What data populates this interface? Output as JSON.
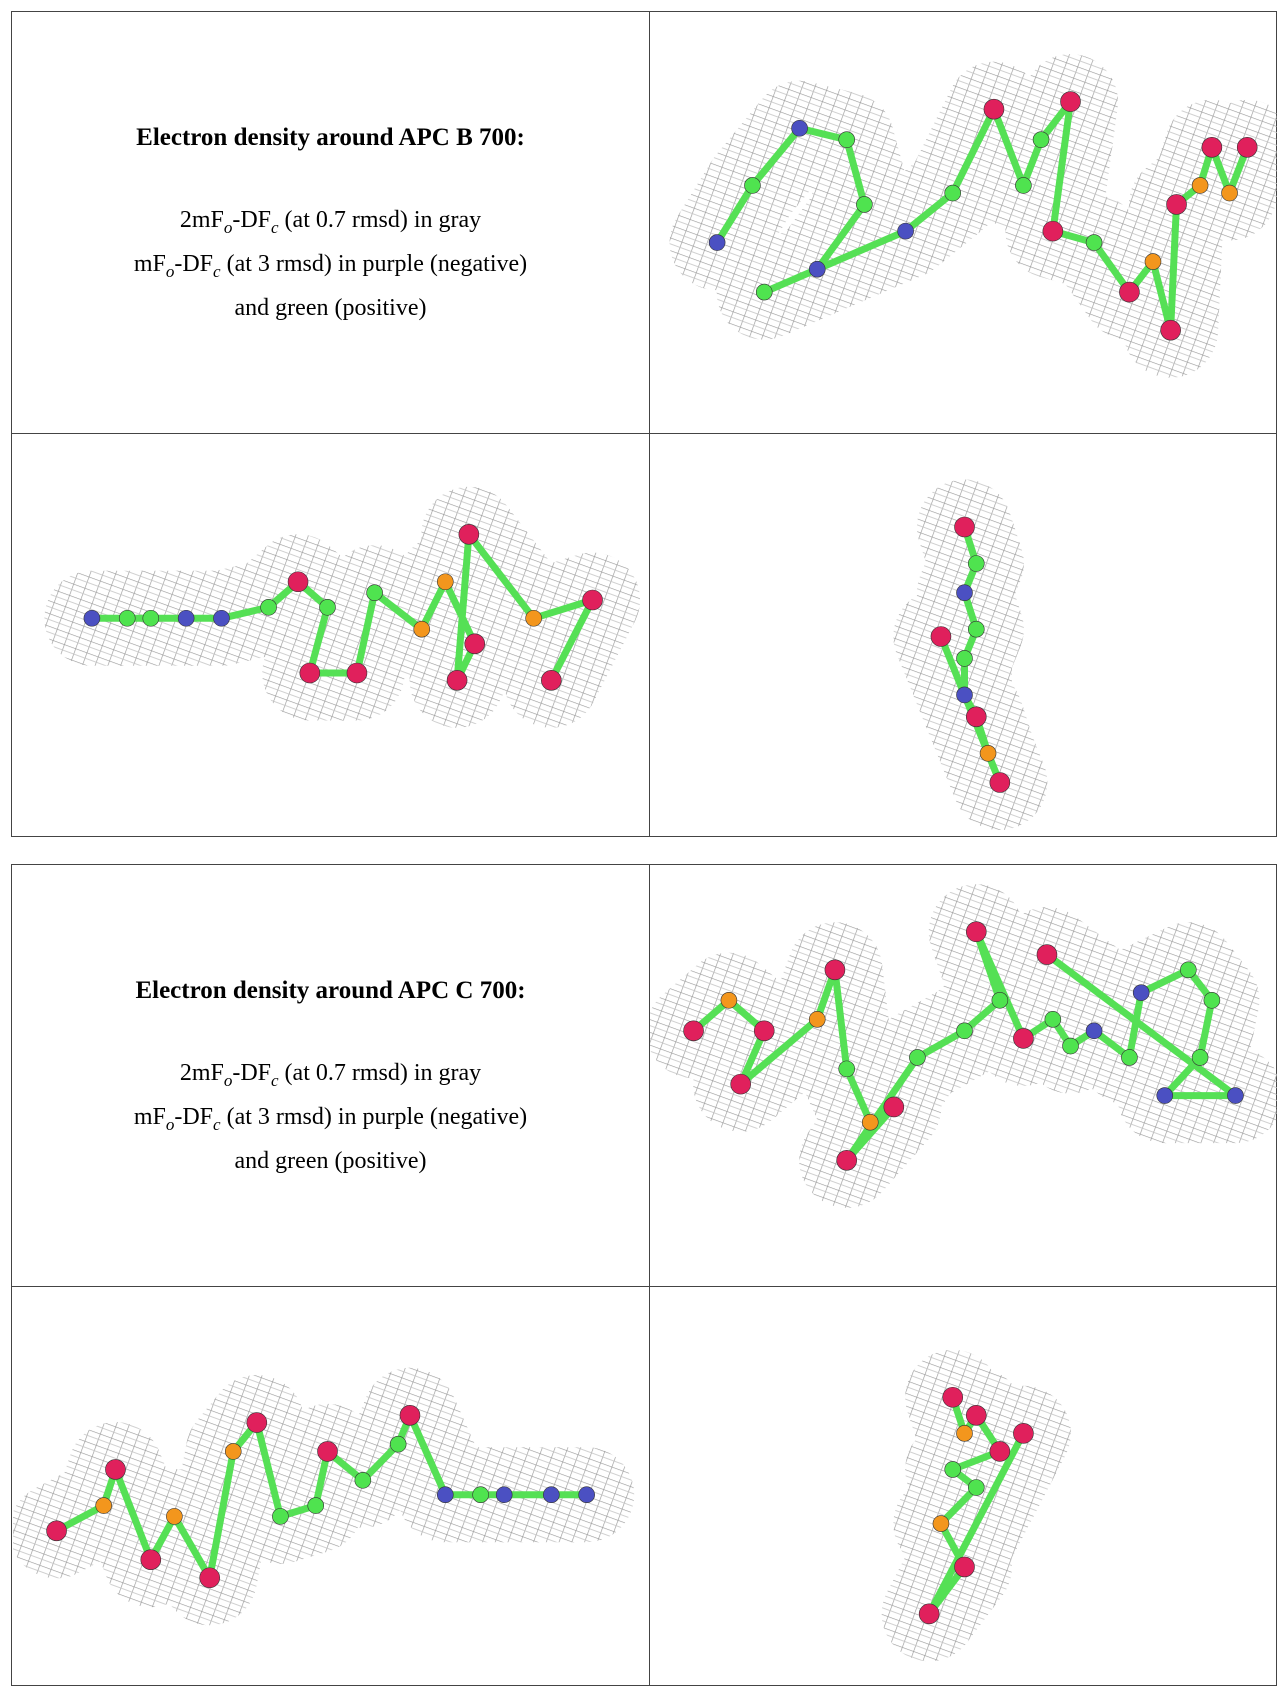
{
  "panels": [
    {
      "title": "Electron density around APC B 700:",
      "caption": [
        [
          "2mF",
          "o",
          "-DF",
          "c",
          " (at 0.7 rmsd) in gray"
        ],
        [
          "mF",
          "o",
          "-DF",
          "c",
          " (at 3 rmsd) in purple (negative)"
        ],
        [
          "and green (positive)"
        ]
      ]
    },
    {
      "title": "Electron density around APC C 700:",
      "caption": [
        [
          "2mF",
          "o",
          "-DF",
          "c",
          " (at 0.7 rmsd) in gray"
        ],
        [
          "mF",
          "o",
          "-DF",
          "c",
          " (at 3 rmsd) in purple (negative)"
        ],
        [
          "and green (positive)"
        ]
      ]
    }
  ]
}
